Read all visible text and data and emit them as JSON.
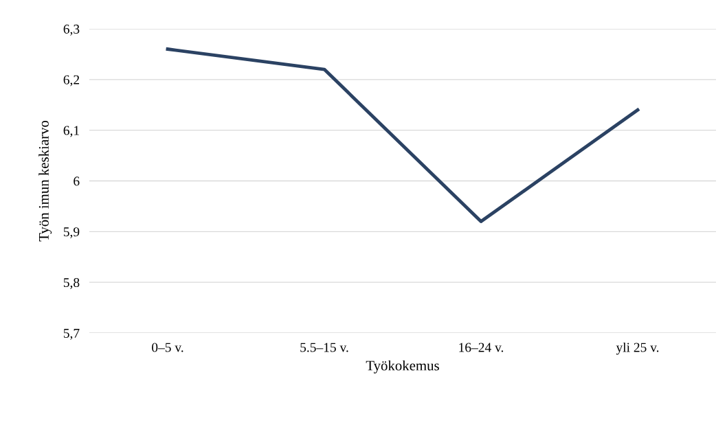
{
  "chart_data": {
    "type": "line",
    "xlabel": "Työkokemus",
    "ylabel": "Työn imun keskiarvo",
    "categories": [
      "0–5 v.",
      "5.5–15 v.",
      "16–24 v.",
      "yli 25 v."
    ],
    "series": [
      {
        "color": "#2b4263",
        "values": [
          6.26,
          6.22,
          5.92,
          6.14
        ]
      }
    ],
    "ylim": [
      5.7,
      6.3
    ],
    "yticks": [
      {
        "value": 5.7,
        "label": "5,7"
      },
      {
        "value": 5.8,
        "label": "5,8"
      },
      {
        "value": 5.9,
        "label": "5,9"
      },
      {
        "value": 6,
        "label": "6"
      },
      {
        "value": 6.1,
        "label": "6,1"
      },
      {
        "value": 6.2,
        "label": "6,2"
      },
      {
        "value": 6.3,
        "label": "6,3"
      }
    ],
    "grid": "y",
    "marker": "none",
    "line_style": "solid"
  }
}
